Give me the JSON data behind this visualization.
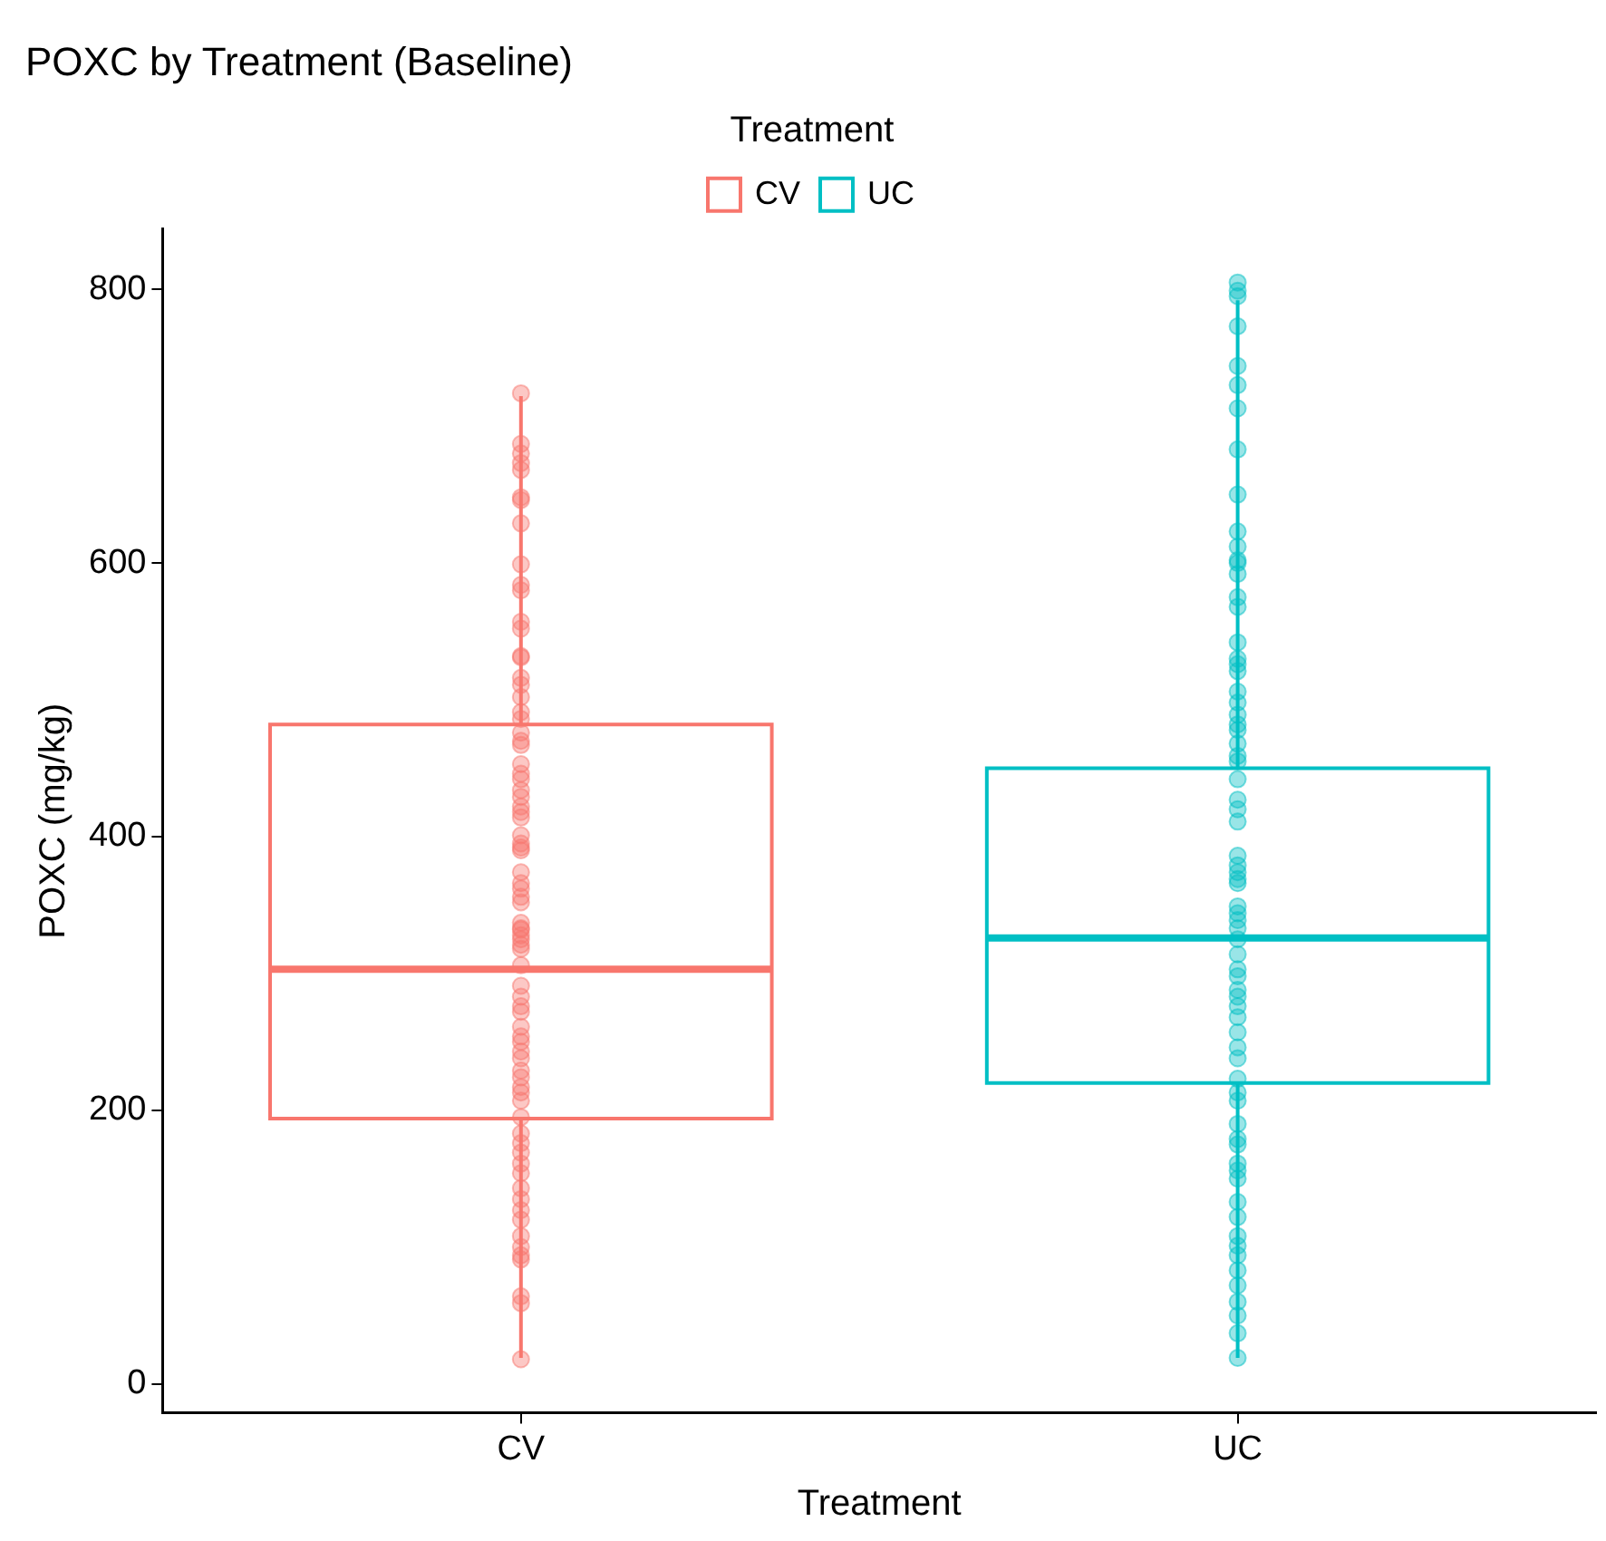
{
  "chart_data": {
    "type": "box",
    "title": "POXC by Treatment (Baseline)",
    "xlabel": "Treatment",
    "ylabel": "POXC (mg/kg)",
    "legend_title": "Treatment",
    "legend": "top",
    "marker": "circle",
    "categories": [
      "CV",
      "UC"
    ],
    "ylim": [
      -21,
      844
    ],
    "yticks": [
      0,
      200,
      400,
      600,
      800
    ],
    "series": [
      {
        "type": "box",
        "name": "CV",
        "color": "#f8766d",
        "boxes": [
          {
            "low": 19,
            "q1": 194,
            "median": 303,
            "q3": 482,
            "high": 722
          },
          null
        ]
      },
      {
        "type": "box",
        "name": "UC",
        "color": "#00bfc4",
        "boxes": [
          null,
          {
            "low": 19,
            "q1": 220,
            "median": 326,
            "q3": 450,
            "high": 792
          }
        ]
      },
      {
        "type": "scatter",
        "color": "#f8766d",
        "x": [
          "CV",
          "CV",
          "CV",
          "CV",
          "CV",
          "CV",
          "CV",
          "CV",
          "CV",
          "CV",
          "CV",
          "CV",
          "CV",
          "CV",
          "CV",
          "CV",
          "CV",
          "CV",
          "CV",
          "CV",
          "CV",
          "CV",
          "CV",
          "CV",
          "CV",
          "CV",
          "CV",
          "CV",
          "CV",
          "CV",
          "CV",
          "CV",
          "CV",
          "CV",
          "CV",
          "CV",
          "CV",
          "CV",
          "CV",
          "CV",
          "CV",
          "CV",
          "CV",
          "CV",
          "CV",
          "CV",
          "CV",
          "CV",
          "CV",
          "CV",
          "CV",
          "CV",
          "CV",
          "CV",
          "CV",
          "CV",
          "CV",
          "CV",
          "CV",
          "CV",
          "CV",
          "CV",
          "CV",
          "CV",
          "CV",
          "CV",
          "CV",
          "CV",
          "CV",
          "CV",
          "CV",
          "CV",
          "CV",
          "CV",
          "CV",
          "CV",
          "CV",
          "CV",
          "CV"
        ],
        "values": [
          724,
          687,
          680,
          673,
          668,
          648,
          646,
          629,
          599,
          584,
          580,
          557,
          552,
          532,
          531,
          516,
          511,
          502,
          491,
          486,
          476,
          470,
          467,
          453,
          446,
          442,
          434,
          429,
          422,
          418,
          414,
          401,
          395,
          392,
          390,
          374,
          366,
          362,
          356,
          352,
          337,
          333,
          332,
          328,
          325,
          321,
          318,
          306,
          291,
          283,
          276,
          272,
          261,
          254,
          250,
          243,
          238,
          229,
          224,
          217,
          213,
          207,
          195,
          183,
          176,
          169,
          161,
          154,
          143,
          135,
          127,
          120,
          108,
          100,
          94,
          91,
          64,
          59,
          18
        ]
      },
      {
        "type": "scatter",
        "color": "#00bfc4",
        "x": [
          "UC",
          "UC",
          "UC",
          "UC",
          "UC",
          "UC",
          "UC",
          "UC",
          "UC",
          "UC",
          "UC",
          "UC",
          "UC",
          "UC",
          "UC",
          "UC",
          "UC",
          "UC",
          "UC",
          "UC",
          "UC",
          "UC",
          "UC",
          "UC",
          "UC",
          "UC",
          "UC",
          "UC",
          "UC",
          "UC",
          "UC",
          "UC",
          "UC",
          "UC",
          "UC",
          "UC",
          "UC",
          "UC",
          "UC",
          "UC",
          "UC",
          "UC",
          "UC",
          "UC",
          "UC",
          "UC",
          "UC",
          "UC",
          "UC",
          "UC",
          "UC",
          "UC",
          "UC",
          "UC",
          "UC",
          "UC",
          "UC",
          "UC",
          "UC",
          "UC",
          "UC",
          "UC",
          "UC",
          "UC",
          "UC",
          "UC",
          "UC",
          "UC",
          "UC",
          "UC",
          "UC",
          "UC"
        ],
        "values": [
          805,
          799,
          795,
          773,
          744,
          730,
          713,
          683,
          650,
          623,
          612,
          602,
          600,
          592,
          575,
          568,
          542,
          530,
          526,
          521,
          506,
          498,
          489,
          482,
          478,
          468,
          459,
          455,
          442,
          427,
          420,
          411,
          386,
          379,
          374,
          369,
          366,
          349,
          344,
          339,
          333,
          325,
          314,
          303,
          298,
          288,
          283,
          276,
          268,
          257,
          246,
          238,
          223,
          213,
          207,
          190,
          179,
          175,
          161,
          156,
          150,
          133,
          122,
          108,
          101,
          94,
          83,
          72,
          60,
          50,
          37,
          19
        ]
      }
    ]
  }
}
